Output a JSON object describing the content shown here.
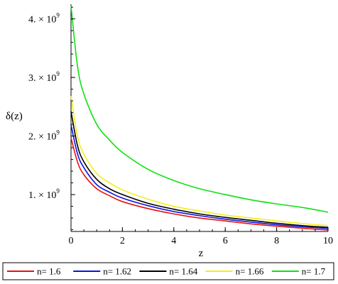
{
  "chart_data": {
    "type": "line",
    "title": "",
    "xlabel": "z",
    "ylabel": "δ(z)",
    "xlim": [
      0,
      10
    ],
    "ylim": [
      370000000,
      4250000000
    ],
    "x_ticks": [
      0,
      2,
      4,
      6,
      8,
      10
    ],
    "x_tick_labels": [
      "0",
      "2",
      "4",
      "6",
      "8",
      "10"
    ],
    "y_ticks": [
      1000000000,
      2000000000,
      3000000000,
      4000000000
    ],
    "y_tick_labels": [
      {
        "mantissa": "1. × 10",
        "exponent": "9"
      },
      {
        "mantissa": "2. × 10",
        "exponent": "9"
      },
      {
        "mantissa": "3. × 10",
        "exponent": "9"
      },
      {
        "mantissa": "4. × 10",
        "exponent": "9"
      }
    ],
    "grid": false,
    "legend_position": "bottom",
    "x": [
      0,
      0.25,
      0.5,
      1,
      1.5,
      2,
      3,
      4,
      5,
      6,
      7,
      8,
      9,
      10
    ],
    "series": [
      {
        "name": "n= 1.6",
        "color": "#e8120c",
        "values": [
          1970000000,
          1560000000,
          1340000000,
          1100000000,
          980000000,
          880000000,
          760000000,
          670000000,
          600000000,
          550000000,
          500000000,
          460000000,
          425000000,
          395000000
        ]
      },
      {
        "name": "n= 1.62",
        "color": "#0b12e0",
        "values": [
          2190000000,
          1700000000,
          1460000000,
          1170000000,
          1040000000,
          940000000,
          810000000,
          710000000,
          640000000,
          580000000,
          530000000,
          485000000,
          450000000,
          420000000
        ]
      },
      {
        "name": "n= 1.64",
        "color": "#000000",
        "values": [
          2420000000,
          1840000000,
          1560000000,
          1260000000,
          1100000000,
          1000000000,
          850000000,
          750000000,
          670000000,
          610000000,
          560000000,
          510000000,
          470000000,
          440000000
        ]
      },
      {
        "name": "n= 1.66",
        "color": "#f2ee1a",
        "values": [
          2680000000,
          2000000000,
          1690000000,
          1360000000,
          1200000000,
          1080000000,
          920000000,
          800000000,
          720000000,
          650000000,
          600000000,
          550000000,
          505000000,
          470000000
        ]
      },
      {
        "name": "n= 1.7",
        "color": "#10e012",
        "values": [
          4230000000,
          3200000000,
          2720000000,
          2200000000,
          1930000000,
          1720000000,
          1430000000,
          1240000000,
          1100000000,
          1000000000,
          910000000,
          840000000,
          780000000,
          700000000
        ]
      }
    ]
  }
}
